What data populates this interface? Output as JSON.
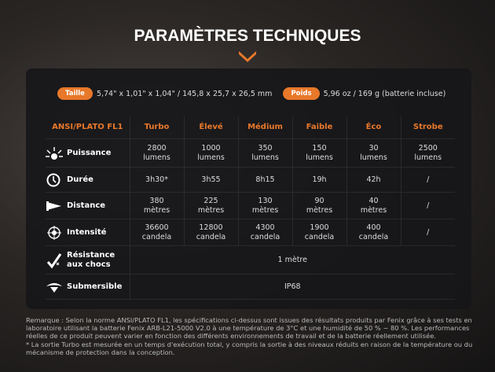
{
  "header": {
    "title": "PARAMÈTRES TECHNIQUES"
  },
  "specs": {
    "size_label": "Taille",
    "size_value": "5,74\" x 1,01\" x 1,04\" / 145,8 x 25,7 x 26,5 mm",
    "weight_label": "Poids",
    "weight_value": "5,96 oz / 169 g (batterie incluse)"
  },
  "table": {
    "headers": [
      "ANSI/PLATO FL1",
      "Turbo",
      "Élevé",
      "Médium",
      "Faible",
      "Éco",
      "Strobe"
    ],
    "rows": [
      {
        "label": "Puissance",
        "cells": [
          "2800\nlumens",
          "1000\nlumens",
          "350\nlumens",
          "150\nlumens",
          "30\nlumens",
          "2500\nlumens"
        ]
      },
      {
        "label": "Durée",
        "cells": [
          "3h30*",
          "3h55",
          "8h15",
          "19h",
          "42h",
          "/"
        ]
      },
      {
        "label": "Distance",
        "cells": [
          "380\nmètres",
          "225\nmètres",
          "130\nmètres",
          "90\nmètres",
          "40\nmètres",
          "/"
        ]
      },
      {
        "label": "Intensité",
        "cells": [
          "36600\ncandela",
          "12800\ncandela",
          "4300\ncandela",
          "1900\ncandela",
          "400\ncandela",
          "/"
        ]
      },
      {
        "label": "Résistance\naux chocs",
        "cells": [
          "1 mètre"
        ]
      },
      {
        "label": "Submersible",
        "cells": [
          "IP68"
        ]
      }
    ]
  },
  "remarks": [
    "Remarque : Selon la norme ANSI/PLATO FL1, les spécifications ci-dessus sont issues des résultats produits par Fenix grâce à ses tests en laboratoire utilisant la batterie Fenix ARB-L21-5000 V2.0 à une température de 3°C et une humidité de 50 % ~ 80 %. Les performances réelles de ce produit peuvent varier en fonction des différents environnements de travail et de la batterie réellement utilisée.",
    "* La sortie Turbo est mesurée en un temps d'exécution total, y compris la sortie à des niveaux réduits en raison de la température ou du mécanisme de protection dans la conception."
  ]
}
